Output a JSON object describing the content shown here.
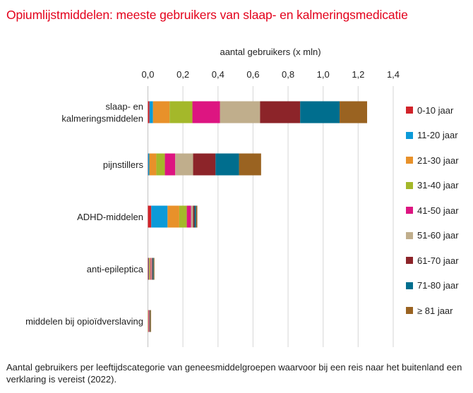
{
  "title": "Opiumlijstmiddelen: meeste gebruikers van slaap- en kalmeringsmedicatie",
  "caption": "Aantal gebruikers per leeftijdscategorie van geneesmiddelgroepen waarvoor bij een reis naar het buitenland een verklaring is vereist (2022).",
  "chart_data": {
    "type": "bar",
    "orientation": "horizontal",
    "stacked": true,
    "title": "Opiumlijstmiddelen: meeste gebruikers van slaap- en kalmeringsmedicatie",
    "xlabel": "aantal gebruikers (x mln)",
    "ylabel": "",
    "xlim": [
      0,
      1.4
    ],
    "xticks": [
      0.0,
      0.2,
      0.4,
      0.6,
      0.8,
      1.0,
      1.2,
      1.4
    ],
    "xtick_labels": [
      "0,0",
      "0,2",
      "0,4",
      "0,6",
      "0,8",
      "1,0",
      "1,2",
      "1,4"
    ],
    "axis_position": "top",
    "grid": "vertical",
    "legend_position": "right",
    "categories": [
      [
        "slaap- en",
        "kalmeringsmiddelen"
      ],
      [
        "pijnstillers"
      ],
      [
        "ADHD-middelen"
      ],
      [
        "anti-epileptica"
      ],
      [
        "middelen bij opioïdverslaving"
      ]
    ],
    "series": [
      {
        "name": "0-10 jaar",
        "color": "#d1232a",
        "values": [
          0.009,
          0.001,
          0.019,
          0.004,
          0.0
        ]
      },
      {
        "name": "11-20 jaar",
        "color": "#0c9ad8",
        "values": [
          0.02,
          0.007,
          0.093,
          0.003,
          0.0
        ]
      },
      {
        "name": "21-30 jaar",
        "color": "#e8912a",
        "values": [
          0.095,
          0.04,
          0.067,
          0.004,
          0.001
        ]
      },
      {
        "name": "31-40 jaar",
        "color": "#a4b82a",
        "values": [
          0.13,
          0.049,
          0.043,
          0.004,
          0.001
        ]
      },
      {
        "name": "41-50 jaar",
        "color": "#dd1581",
        "values": [
          0.157,
          0.059,
          0.024,
          0.004,
          0.003
        ]
      },
      {
        "name": "51-60 jaar",
        "color": "#c0ae8c",
        "values": [
          0.229,
          0.102,
          0.012,
          0.004,
          0.003
        ]
      },
      {
        "name": "61-70 jaar",
        "color": "#8c2429",
        "values": [
          0.229,
          0.128,
          0.008,
          0.004,
          0.003
        ]
      },
      {
        "name": "71-80 jaar",
        "color": "#006e8e",
        "values": [
          0.225,
          0.134,
          0.009,
          0.005,
          0.002
        ]
      },
      {
        "name": "≥ 81 jaar",
        "color": "#9a6321",
        "values": [
          0.157,
          0.126,
          0.007,
          0.005,
          0.005
        ]
      }
    ]
  }
}
